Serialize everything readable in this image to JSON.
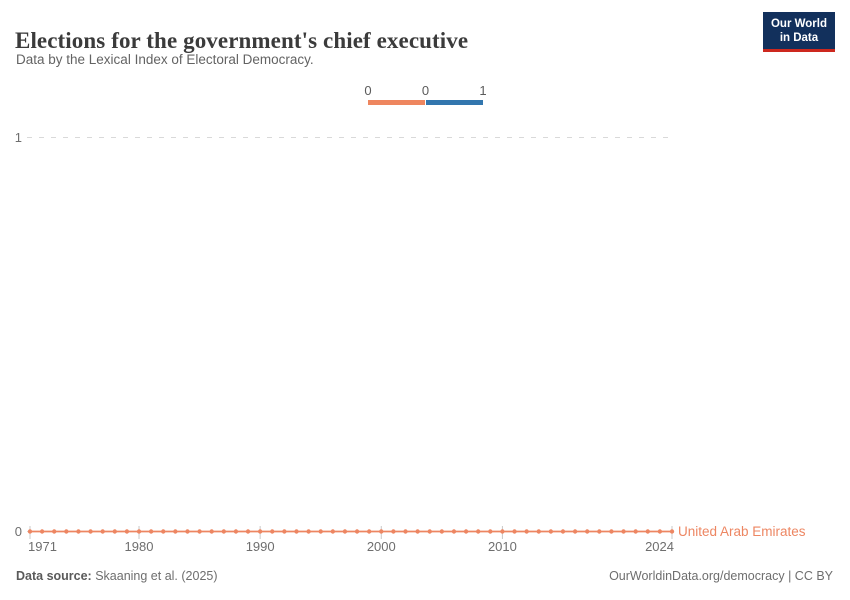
{
  "header": {
    "title": "Elections for the government's chief executive",
    "subtitle": "Data by the Lexical Index of Electoral Democracy."
  },
  "logo": {
    "line1": "Our World",
    "line2": "in Data"
  },
  "legend": {
    "stops": [
      "0",
      "0",
      "1"
    ],
    "colors": [
      "#ee865f",
      "#3276ae"
    ]
  },
  "chart_data": {
    "type": "line",
    "title": "Elections for the government's chief executive",
    "xlabel": "",
    "ylabel": "",
    "ylim": [
      0,
      1
    ],
    "grid": "dashed-horizontal",
    "legend_position": "top-center",
    "x": [
      1971,
      1972,
      1973,
      1974,
      1975,
      1976,
      1977,
      1978,
      1979,
      1980,
      1981,
      1982,
      1983,
      1984,
      1985,
      1986,
      1987,
      1988,
      1989,
      1990,
      1991,
      1992,
      1993,
      1994,
      1995,
      1996,
      1997,
      1998,
      1999,
      2000,
      2001,
      2002,
      2003,
      2004,
      2005,
      2006,
      2007,
      2008,
      2009,
      2010,
      2011,
      2012,
      2013,
      2014,
      2015,
      2016,
      2017,
      2018,
      2019,
      2020,
      2021,
      2022,
      2023,
      2024
    ],
    "x_ticks": [
      1971,
      1980,
      1990,
      2000,
      2010,
      2024
    ],
    "y_ticks": [
      0,
      1
    ],
    "series": [
      {
        "name": "United Arab Emirates",
        "color": "#ed8662",
        "values": [
          0,
          0,
          0,
          0,
          0,
          0,
          0,
          0,
          0,
          0,
          0,
          0,
          0,
          0,
          0,
          0,
          0,
          0,
          0,
          0,
          0,
          0,
          0,
          0,
          0,
          0,
          0,
          0,
          0,
          0,
          0,
          0,
          0,
          0,
          0,
          0,
          0,
          0,
          0,
          0,
          0,
          0,
          0,
          0,
          0,
          0,
          0,
          0,
          0,
          0,
          0,
          0,
          0,
          0
        ]
      }
    ]
  },
  "footer": {
    "source_label": "Data source:",
    "source_value": " Skaaning et al. (2025)",
    "credit": "OurWorldinData.org/democracy | CC BY"
  },
  "colors": {
    "logo-navy": "#12305c",
    "logo-red": "#cd281e",
    "grid": "#d9d9d9",
    "accent": "#ed8662",
    "legend-blue": "#3276ae"
  }
}
